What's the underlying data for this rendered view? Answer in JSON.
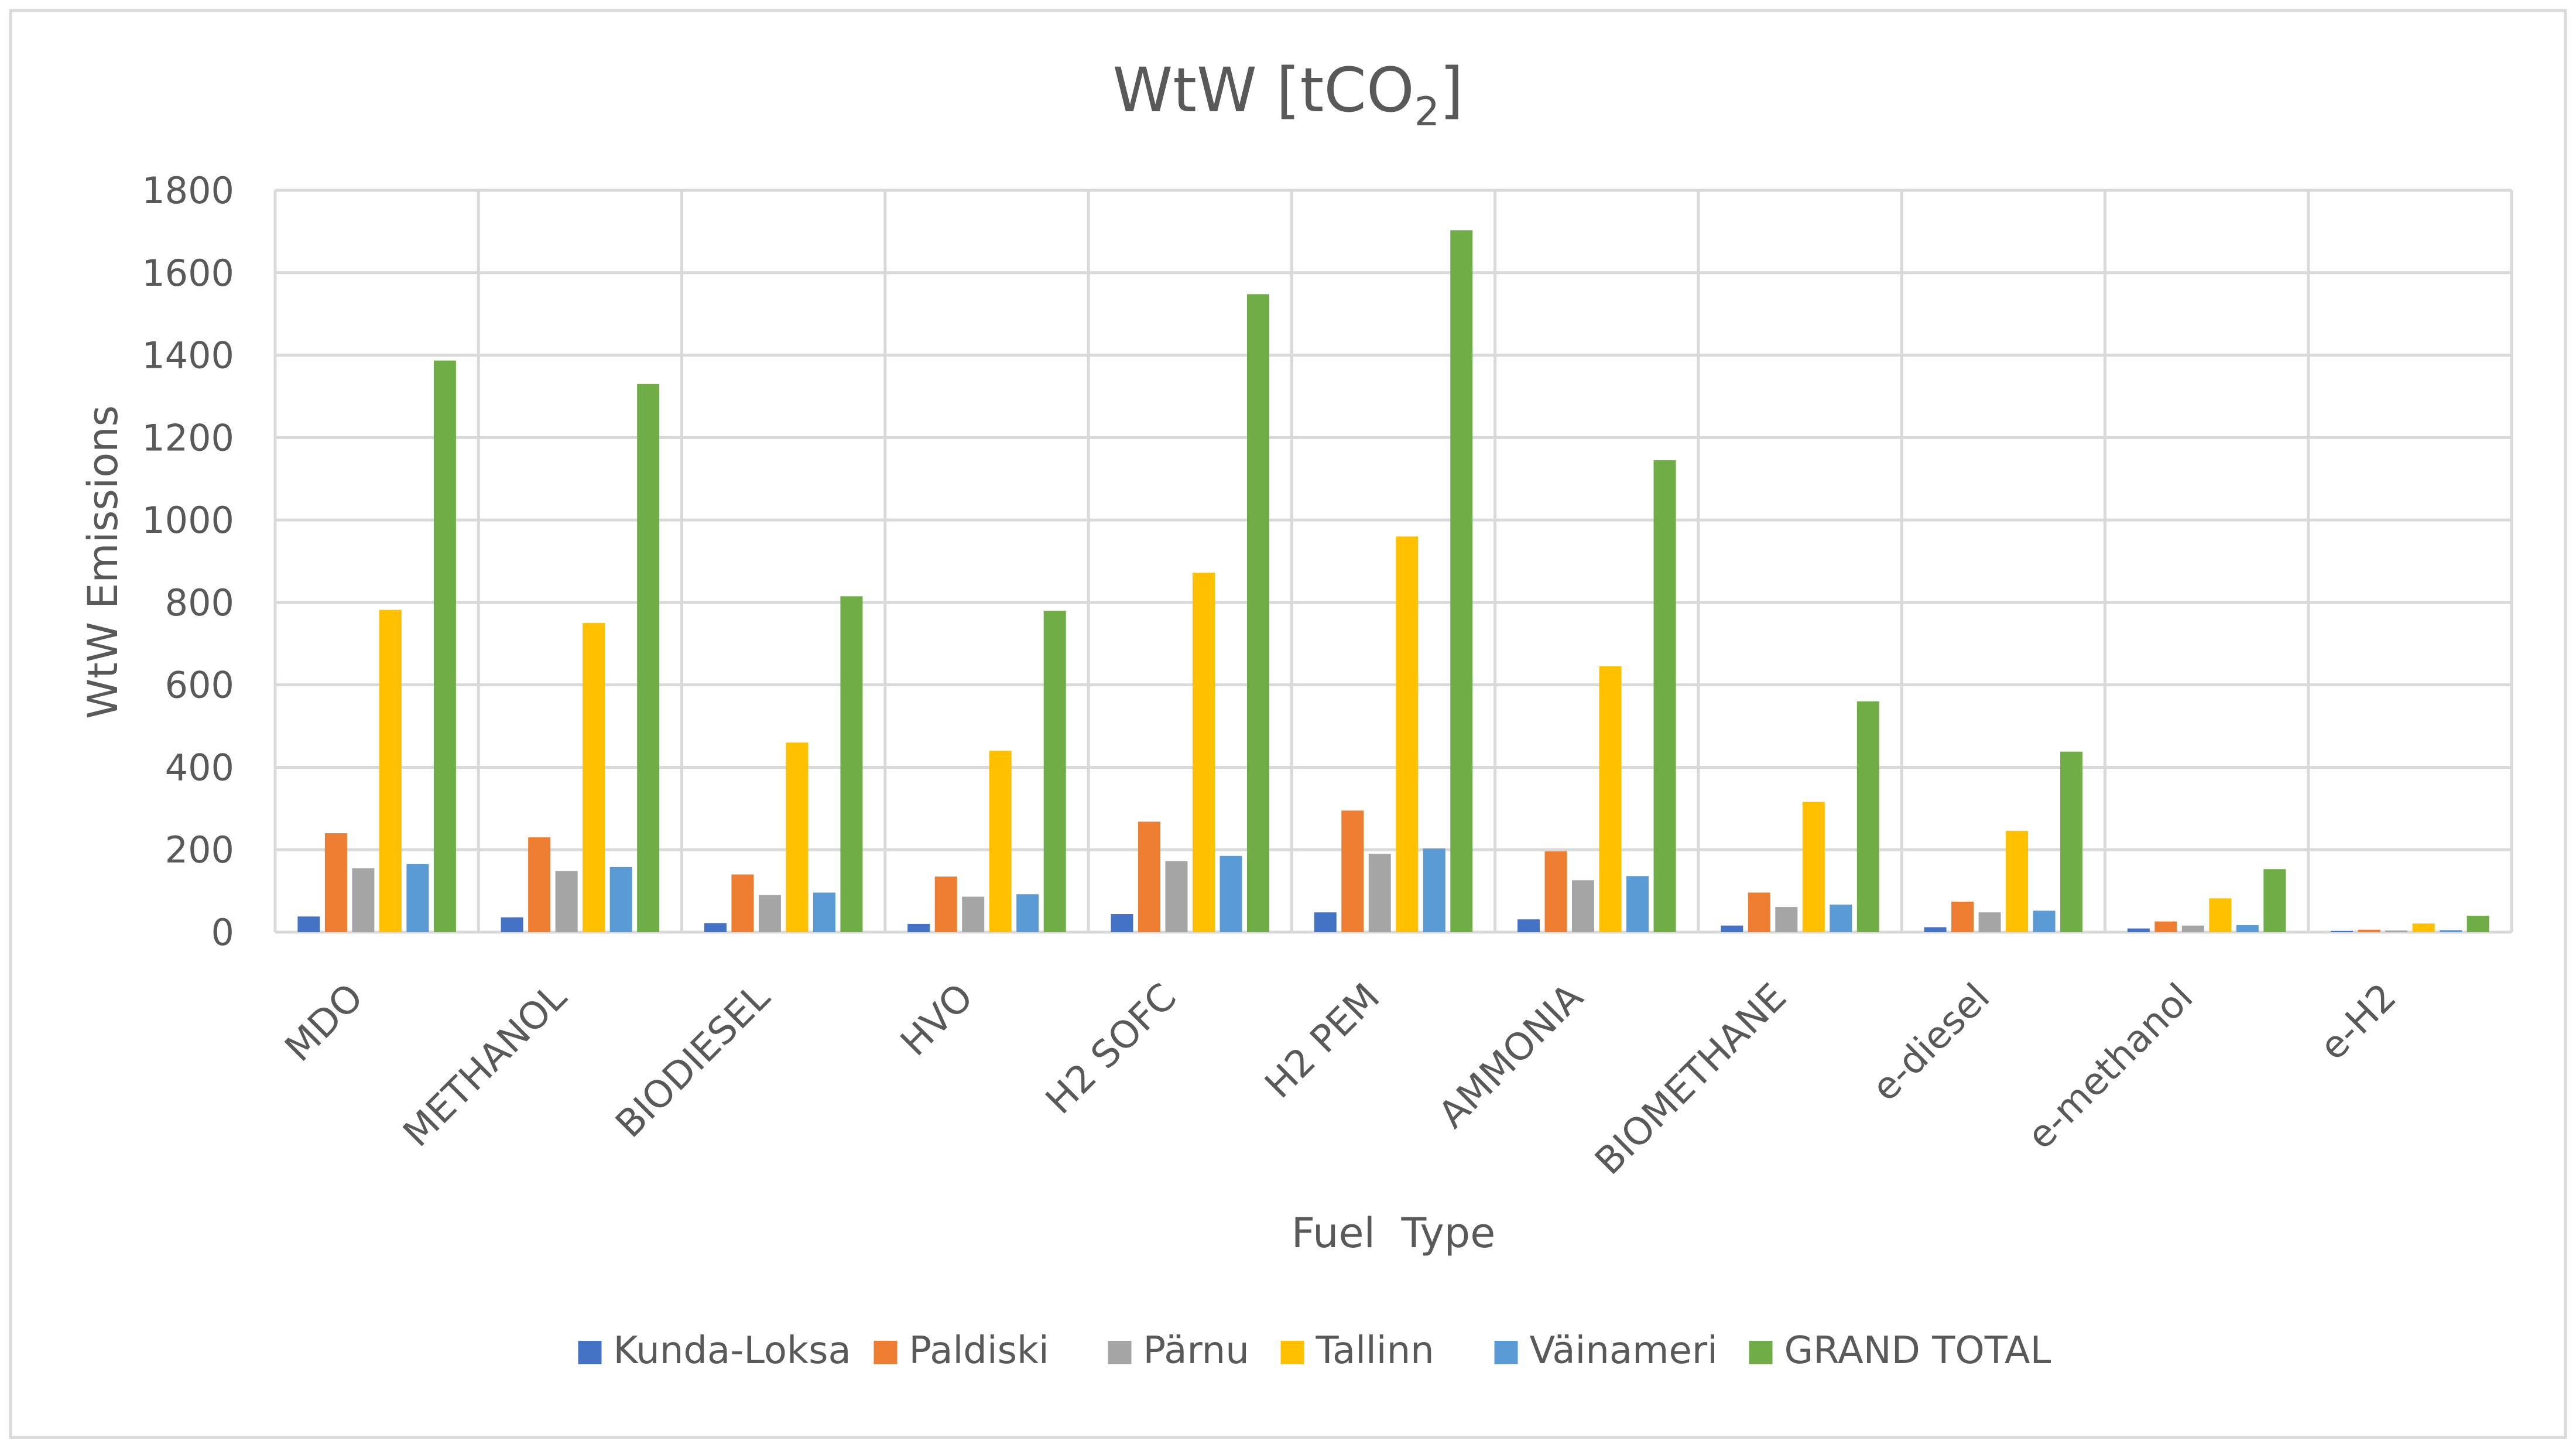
{
  "chart_data": {
    "type": "bar",
    "title": "WtW [tCO",
    "title_subscript": "2",
    "title_suffix": "]",
    "xlabel": "Fuel  Type",
    "ylabel": "WtW Emissions",
    "ylim": [
      0,
      1800
    ],
    "yticks": [
      0,
      200,
      400,
      600,
      800,
      1000,
      1200,
      1400,
      1600,
      1800
    ],
    "grid": true,
    "legend_position": "bottom",
    "categories": [
      "MDO",
      "METHANOL",
      "BIODIESEL",
      "HVO",
      "H2 SOFC",
      "H2 PEM",
      "AMMONIA",
      "BIOMETHANE",
      "e-diesel",
      "e-methanol",
      "e-H2"
    ],
    "series": [
      {
        "name": "Kunda-Loksa",
        "color": "#4472C4",
        "values": [
          38,
          36,
          22,
          20,
          44,
          48,
          31,
          16,
          12,
          9,
          3
        ]
      },
      {
        "name": "Paldiski",
        "color": "#ED7D31",
        "values": [
          240,
          230,
          140,
          135,
          268,
          295,
          196,
          96,
          74,
          26,
          6
        ]
      },
      {
        "name": "Pärnu",
        "color": "#A5A5A5",
        "values": [
          155,
          148,
          90,
          86,
          172,
          190,
          126,
          61,
          48,
          16,
          4
        ]
      },
      {
        "name": "Tallinn",
        "color": "#FFC000",
        "values": [
          782,
          750,
          460,
          440,
          872,
          960,
          645,
          316,
          246,
          82,
          21
        ]
      },
      {
        "name": "Väinameri",
        "color": "#5B9BD5",
        "values": [
          165,
          158,
          96,
          92,
          185,
          203,
          136,
          67,
          52,
          17,
          5
        ]
      },
      {
        "name": "GRAND TOTAL",
        "color": "#70AD47",
        "values": [
          1387,
          1330,
          815,
          780,
          1548,
          1703,
          1145,
          560,
          438,
          153,
          40
        ]
      }
    ]
  }
}
